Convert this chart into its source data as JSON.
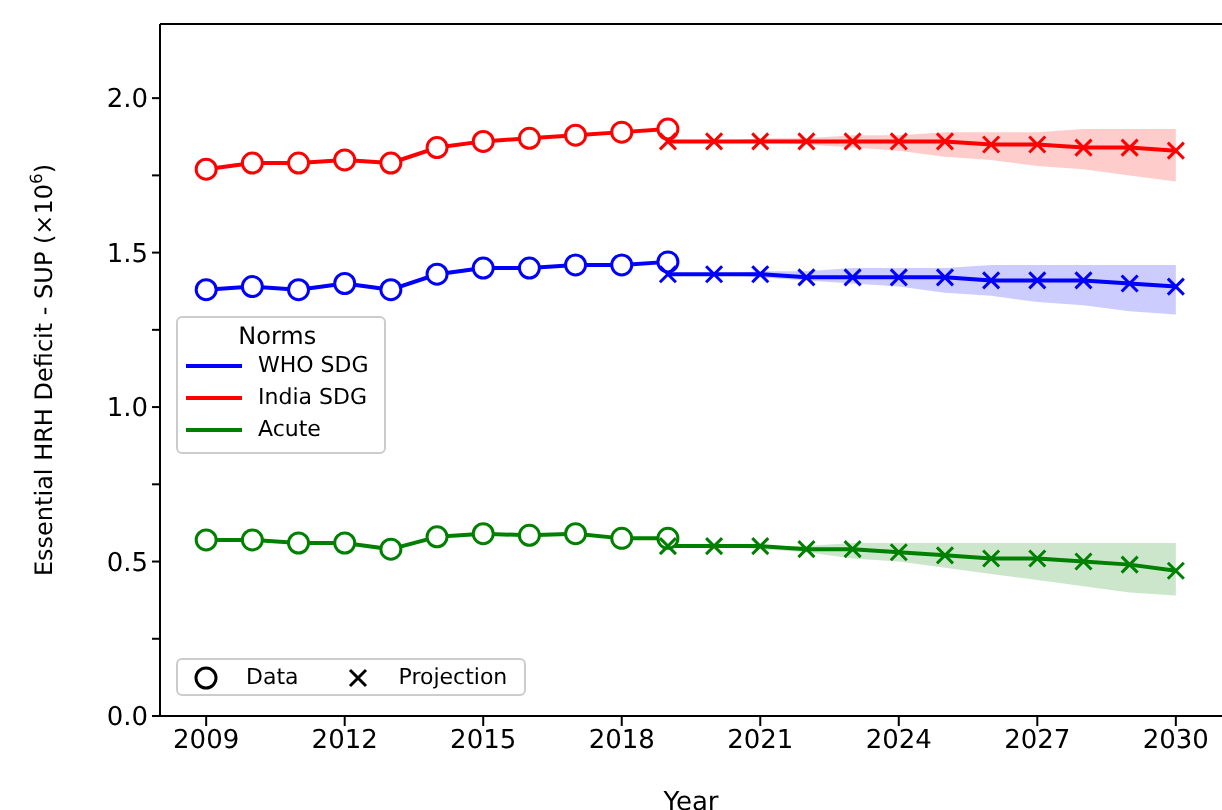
{
  "chart_data": {
    "type": "line",
    "xlabel": "Year",
    "ylabel": "Essential HRH Deficit - SUP (×10$^{6}$)",
    "legend_title": "Norms",
    "legend": "center left",
    "xlim": [
      2008,
      2031
    ],
    "xticks": [
      2009,
      2012,
      2015,
      2018,
      2021,
      2024,
      2027,
      2030
    ],
    "ylim": [
      0,
      2.24
    ],
    "yticks": [
      {
        "value": 0,
        "label": "0.0"
      },
      {
        "value": 0.25,
        "label": null
      },
      0.5,
      {
        "value": 0.75,
        "label": null
      },
      {
        "value": 1,
        "label": "1.0"
      },
      {
        "value": 1.25,
        "label": null
      },
      1.5,
      {
        "value": 1.75,
        "label": null
      },
      {
        "value": 2,
        "label": "2.0"
      }
    ],
    "annotations": [
      "Data",
      "Projection"
    ],
    "series": [
      {
        "name": "WHO SDG",
        "color": "#0000ff",
        "marker": "circle",
        "x": [
          2009,
          2010,
          2011,
          2012,
          2013,
          2014,
          2015,
          2016,
          2017,
          2018,
          2019
        ],
        "values": [
          1.38,
          1.39,
          1.38,
          1.4,
          1.38,
          1.43,
          1.45,
          1.45,
          1.46,
          1.46,
          1.47
        ]
      },
      {
        "name": "India SDG",
        "color": "#ff0000",
        "marker": "circle",
        "x": [
          2009,
          2010,
          2011,
          2012,
          2013,
          2014,
          2015,
          2016,
          2017,
          2018,
          2019
        ],
        "values": [
          1.77,
          1.79,
          1.79,
          1.8,
          1.79,
          1.84,
          1.86,
          1.87,
          1.88,
          1.89,
          1.9
        ]
      },
      {
        "name": "Acute",
        "color": "#008000",
        "marker": "circle",
        "x": [
          2009,
          2010,
          2011,
          2012,
          2013,
          2014,
          2015,
          2016,
          2017,
          2018,
          2019
        ],
        "values": [
          0.57,
          0.57,
          0.56,
          0.56,
          0.54,
          0.58,
          0.59,
          0.585,
          0.59,
          0.575,
          0.575
        ]
      },
      {
        "color": "#0000ff",
        "marker": "cross",
        "x": [
          2019,
          2020,
          2021,
          2022,
          2023,
          2024,
          2025,
          2026,
          2027,
          2028,
          2029,
          2030
        ],
        "values": [
          1.43,
          1.43,
          1.43,
          1.42,
          1.42,
          1.42,
          1.42,
          1.41,
          1.41,
          1.41,
          1.4,
          1.39
        ],
        "lower": [
          1.43,
          1.43,
          1.42,
          1.41,
          1.4,
          1.39,
          1.37,
          1.36,
          1.34,
          1.33,
          1.31,
          1.3
        ],
        "upper": [
          1.43,
          1.43,
          1.44,
          1.44,
          1.45,
          1.45,
          1.45,
          1.46,
          1.46,
          1.46,
          1.46,
          1.46
        ]
      },
      {
        "color": "#ff0000",
        "marker": "cross",
        "x": [
          2019,
          2020,
          2021,
          2022,
          2023,
          2024,
          2025,
          2026,
          2027,
          2028,
          2029,
          2030
        ],
        "values": [
          1.86,
          1.86,
          1.86,
          1.86,
          1.86,
          1.86,
          1.86,
          1.85,
          1.85,
          1.84,
          1.84,
          1.83
        ],
        "lower": [
          1.86,
          1.86,
          1.86,
          1.85,
          1.84,
          1.83,
          1.81,
          1.8,
          1.78,
          1.77,
          1.75,
          1.73
        ],
        "upper": [
          1.86,
          1.86,
          1.87,
          1.87,
          1.88,
          1.88,
          1.89,
          1.89,
          1.89,
          1.9,
          1.9,
          1.9
        ]
      },
      {
        "color": "#008000",
        "marker": "cross",
        "x": [
          2019,
          2020,
          2021,
          2022,
          2023,
          2024,
          2025,
          2026,
          2027,
          2028,
          2029,
          2030
        ],
        "values": [
          0.55,
          0.55,
          0.55,
          0.54,
          0.54,
          0.53,
          0.52,
          0.51,
          0.51,
          0.5,
          0.49,
          0.47
        ],
        "lower": [
          0.55,
          0.55,
          0.54,
          0.53,
          0.51,
          0.5,
          0.48,
          0.46,
          0.44,
          0.42,
          0.4,
          0.39
        ],
        "upper": [
          0.55,
          0.55,
          0.55,
          0.55,
          0.56,
          0.56,
          0.56,
          0.56,
          0.56,
          0.56,
          0.56,
          0.56
        ]
      }
    ]
  }
}
